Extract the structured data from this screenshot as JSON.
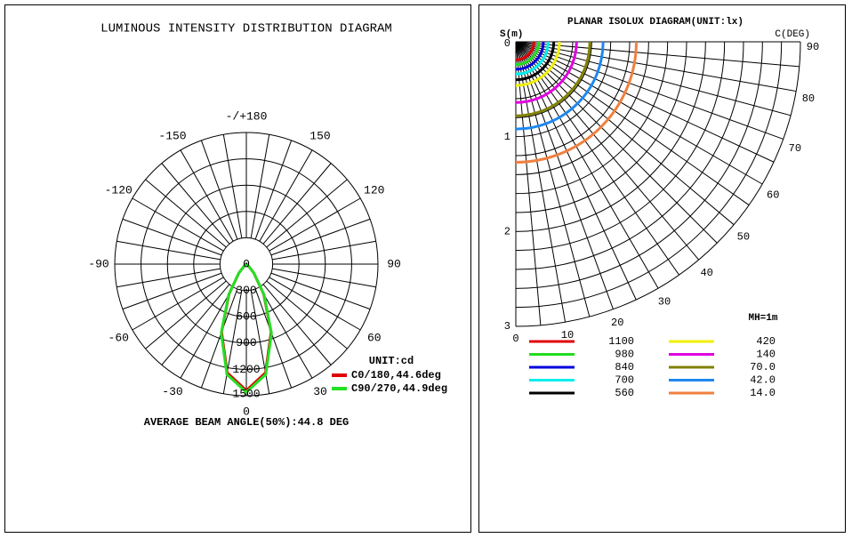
{
  "chart_data": [
    {
      "type": "polar",
      "title": "LUMINOUS INTENSITY DISTRIBUTION DIAGRAM",
      "unit_label": "UNIT:cd",
      "annotation": "AVERAGE BEAM ANGLE(50%):44.8 DEG",
      "x": [
        -90,
        -80,
        -70,
        -60,
        -50,
        -40,
        -30,
        -20,
        -10,
        0,
        10,
        20,
        30,
        40,
        50,
        60,
        70,
        80,
        90
      ],
      "xlim": [
        -180,
        180
      ],
      "xticks": [
        {
          "value": -180,
          "label": "-/+180"
        },
        -150,
        -120,
        -90,
        -60,
        -30,
        0,
        30,
        60,
        90,
        120,
        150
      ],
      "ylim": [
        0,
        1500
      ],
      "yticks": [
        0,
        300,
        600,
        900,
        1200,
        1500
      ],
      "series": [
        {
          "name": "C0/180,44.6deg",
          "color": "#e00000",
          "values": [
            0,
            0,
            0,
            3,
            27,
            131,
            395,
            824,
            1257,
            1440,
            1257,
            824,
            395,
            131,
            27,
            3,
            0,
            0,
            0
          ]
        },
        {
          "name": "C90/270,44.9deg",
          "color": "#22e022",
          "values": [
            0,
            0,
            0,
            3,
            29,
            136,
            405,
            838,
            1276,
            1460,
            1276,
            838,
            405,
            136,
            29,
            3,
            0,
            0,
            0
          ]
        }
      ]
    },
    {
      "type": "isolux",
      "title": "PLANAR ISOLUX DIAGRAM(UNIT:lx)",
      "ylabel": "S(m)",
      "xlabel": "C(DEG)",
      "annotation": "MH=1m",
      "xlim": [
        0,
        90
      ],
      "xticks": [
        0,
        10,
        20,
        30,
        40,
        50,
        60,
        70,
        80,
        90
      ],
      "ylim": [
        0,
        3
      ],
      "yticks": [
        0,
        1,
        2,
        3
      ],
      "series": [
        {
          "name": "1100",
          "color": "#e00000",
          "values": [
            0.19
          ]
        },
        {
          "name": "980",
          "color": "#22dd22",
          "values": [
            0.24
          ]
        },
        {
          "name": "840",
          "color": "#0000dd",
          "values": [
            0.29
          ]
        },
        {
          "name": "700",
          "color": "#00eeee",
          "values": [
            0.34
          ]
        },
        {
          "name": "560",
          "color": "#000000",
          "values": [
            0.4
          ]
        },
        {
          "name": "420",
          "color": "#f0f000",
          "values": [
            0.46
          ]
        },
        {
          "name": "140",
          "color": "#e000e0",
          "values": [
            0.64
          ]
        },
        {
          "name": "70.0",
          "color": "#808000",
          "values": [
            0.78
          ]
        },
        {
          "name": "42.0",
          "color": "#1e88f0",
          "values": [
            0.92
          ]
        },
        {
          "name": "14.0",
          "color": "#f08040",
          "values": [
            1.27
          ]
        }
      ]
    }
  ]
}
